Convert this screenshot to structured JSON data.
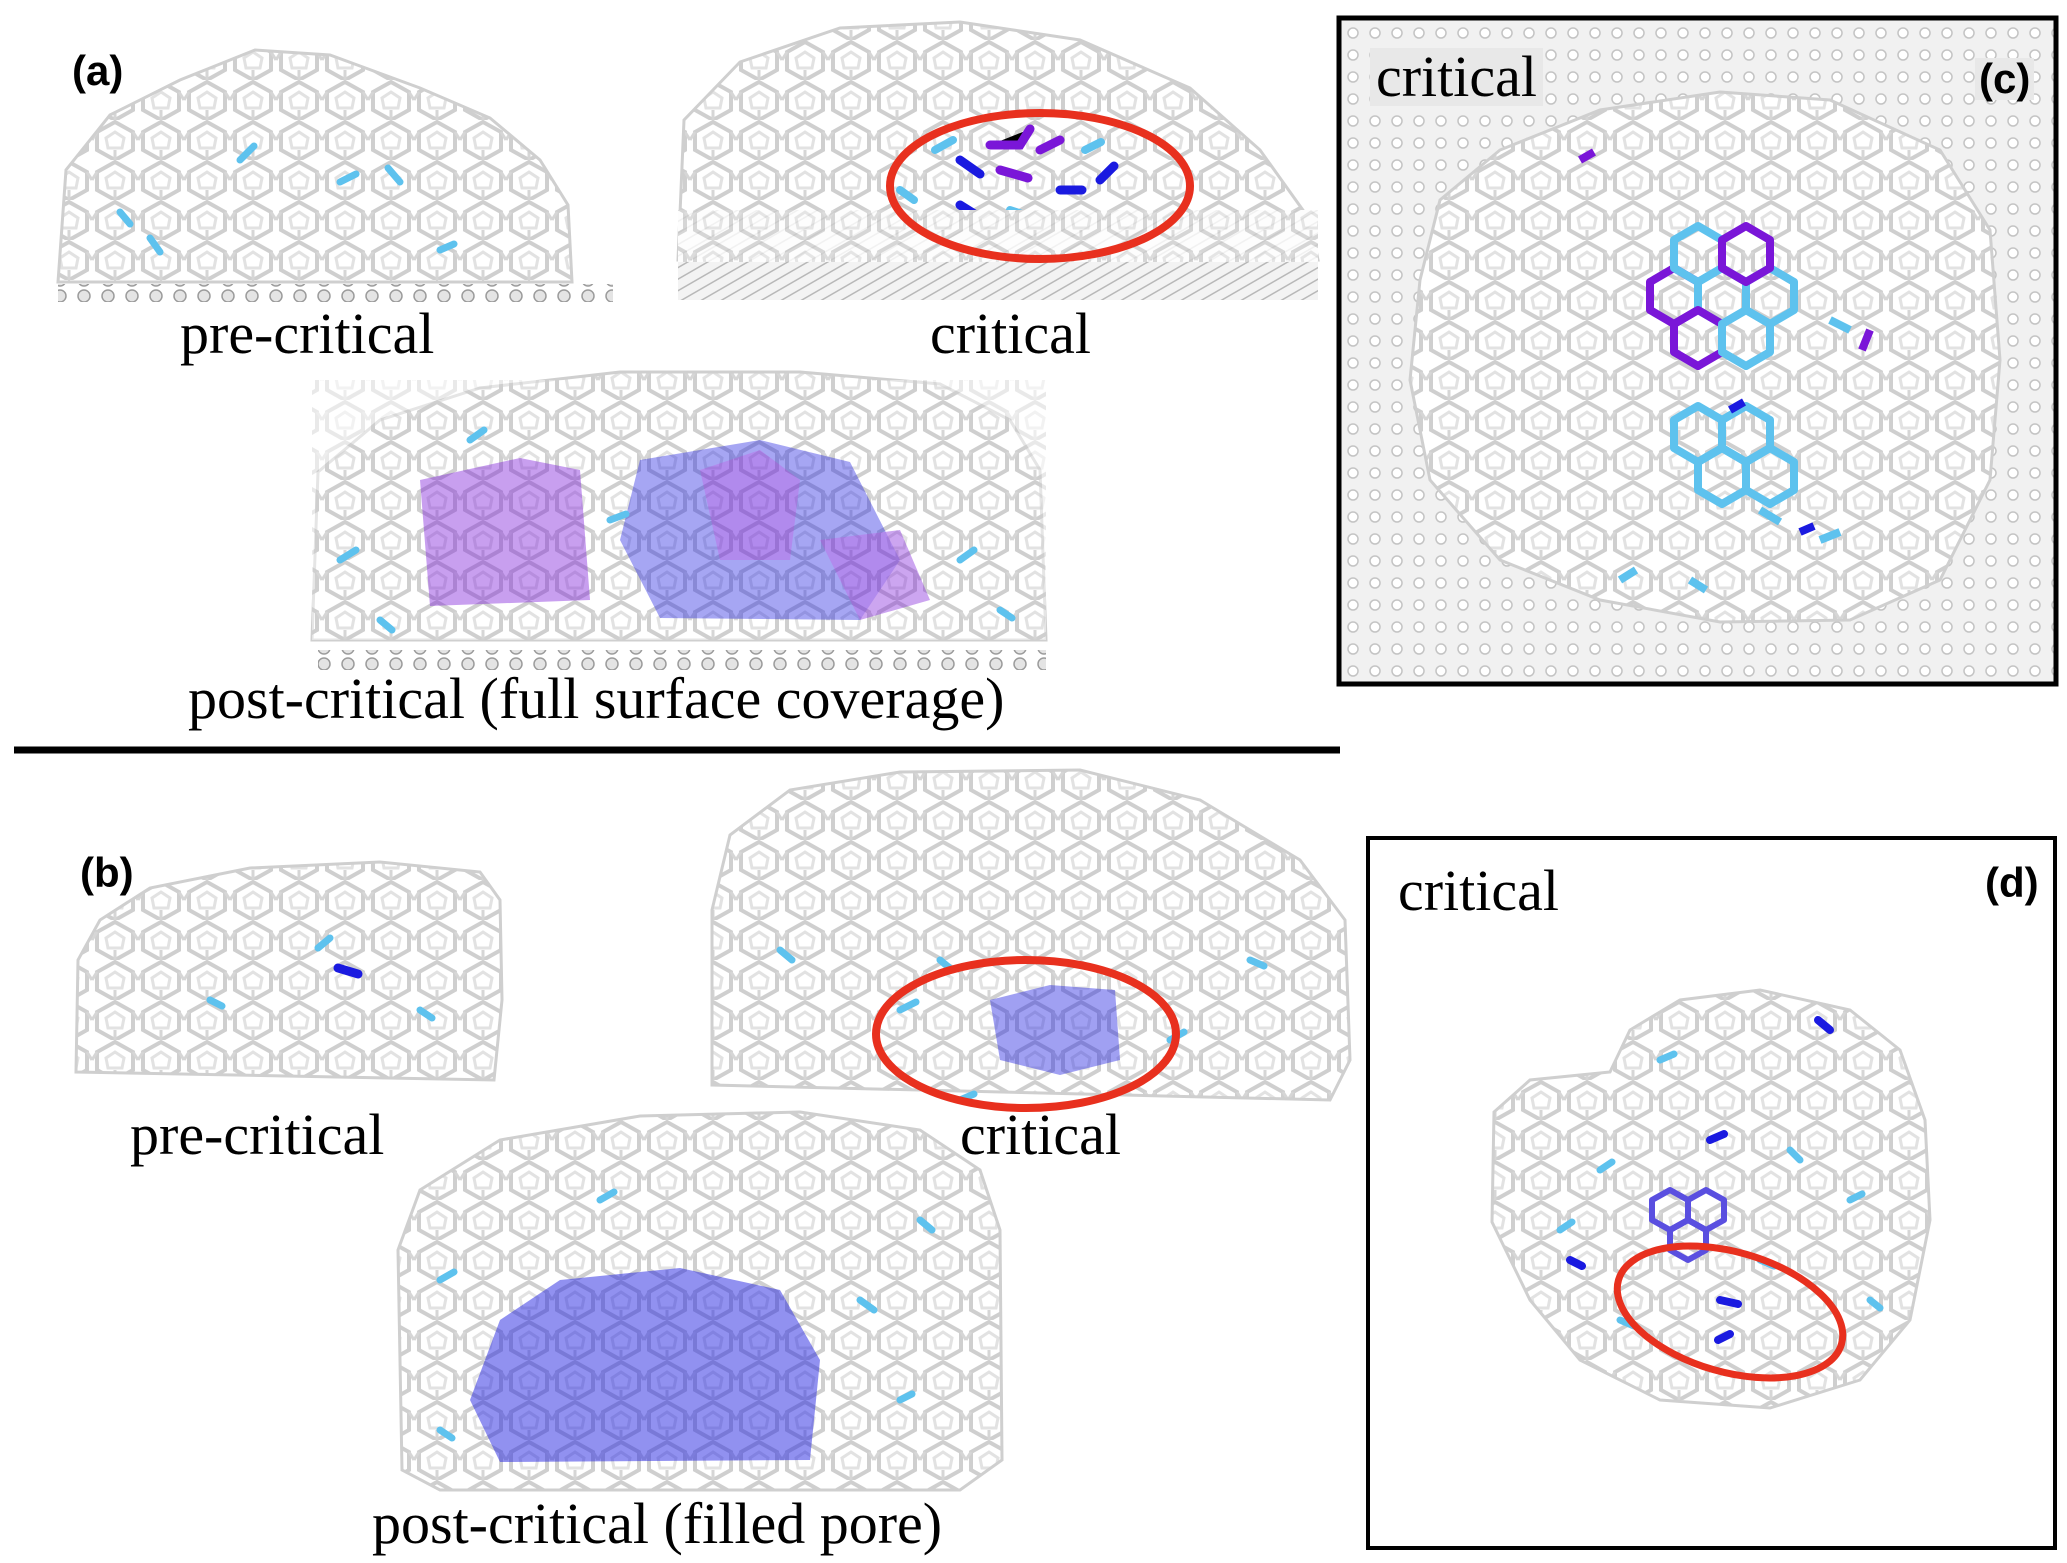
{
  "panels": {
    "a": {
      "label": "(a)",
      "captions": {
        "pre": "pre-critical",
        "crit": "critical",
        "post": "post-critical (full surface coverage)"
      }
    },
    "b": {
      "label": "(b)",
      "captions": {
        "pre": "pre-critical",
        "crit": "critical",
        "post": "post-critical (filled pore)"
      }
    },
    "c": {
      "label": "(c)",
      "title": "critical"
    },
    "d": {
      "label": "(d)",
      "title": "critical"
    }
  },
  "colors": {
    "framework": "#d6d6d6",
    "light_blue": "#5ec2ee",
    "dark_blue": "#1a1ae0",
    "purple": "#7a16d8",
    "highlight_ellipse": "#e8301e",
    "substrate": "#bdbdbd"
  }
}
